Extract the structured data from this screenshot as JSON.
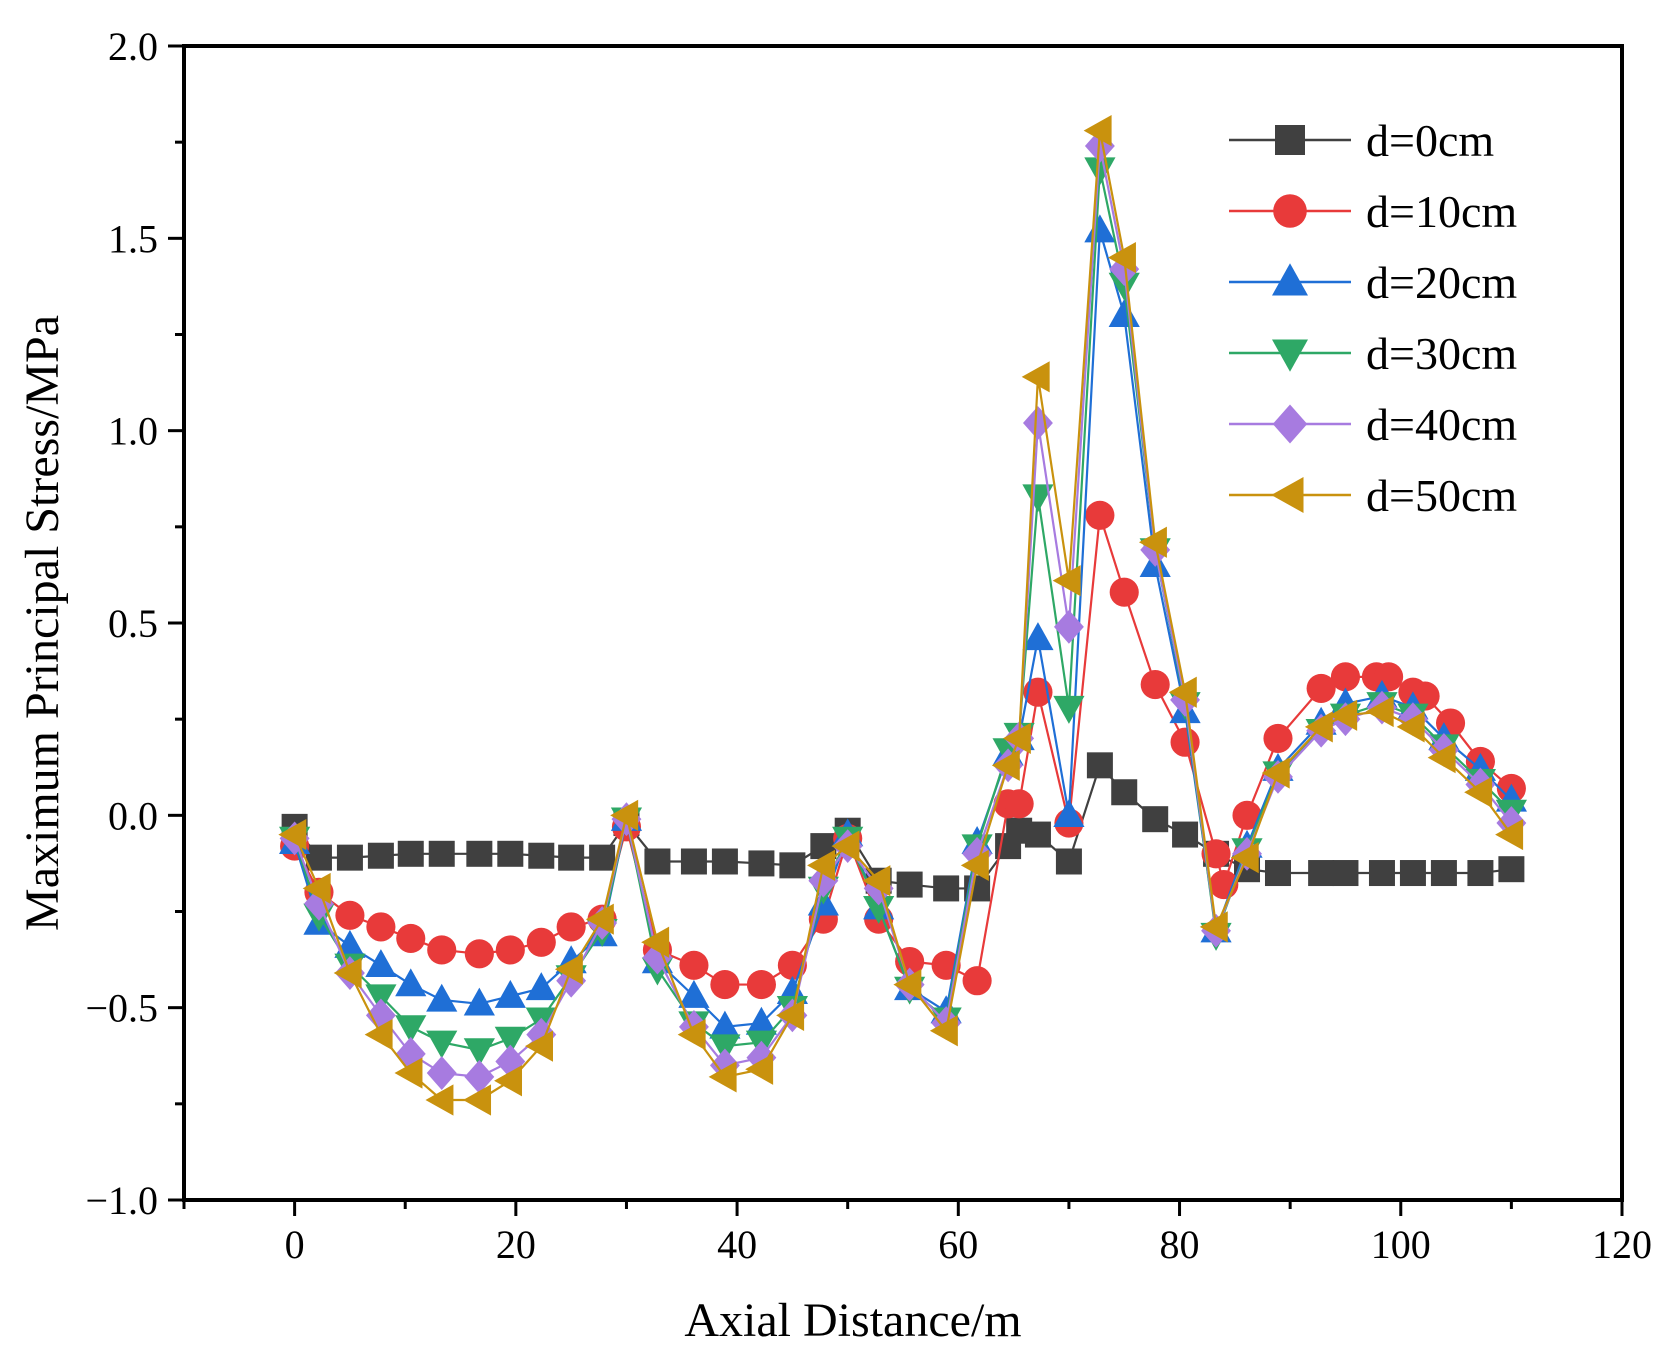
{
  "chart_data": {
    "type": "line",
    "title": "",
    "xlabel": "Axial Distance/m",
    "ylabel": "Maximum Principal Stress/MPa",
    "xlim": [
      -10,
      120
    ],
    "ylim": [
      -1.0,
      2.0
    ],
    "xticks": [
      0,
      20,
      40,
      60,
      80,
      100,
      120
    ],
    "xtick_labels": [
      "0",
      "20",
      "40",
      "60",
      "80",
      "100",
      "120"
    ],
    "yticks": [
      -1.0,
      -0.5,
      0.0,
      0.5,
      1.0,
      1.5,
      2.0
    ],
    "ytick_labels": [
      "−1.0",
      "−0.5",
      "0.0",
      "0.5",
      "1.0",
      "1.5",
      "2.0"
    ],
    "grid": false,
    "legend_position": "top-right",
    "series": [
      {
        "name": "d=0cm",
        "color": "#404040",
        "marker": "square",
        "x": [
          0,
          2.2,
          5,
          7.8,
          10.5,
          13.3,
          16.7,
          19.5,
          22.3,
          25,
          27.8,
          30,
          32.8,
          36.1,
          38.9,
          42.2,
          45,
          47.8,
          50,
          52.8,
          55.6,
          58.9,
          61.7,
          64.5,
          65.5,
          67.2,
          70,
          72.8,
          75,
          77.8,
          80.5,
          83.3,
          86.1,
          88.9,
          92.8,
          95,
          98.3,
          101.1,
          103.9,
          107.2,
          110
        ],
        "values": [
          -0.03,
          -0.11,
          -0.11,
          -0.105,
          -0.1,
          -0.1,
          -0.1,
          -0.1,
          -0.105,
          -0.11,
          -0.11,
          -0.02,
          -0.12,
          -0.12,
          -0.12,
          -0.125,
          -0.13,
          -0.08,
          -0.04,
          -0.17,
          -0.18,
          -0.19,
          -0.19,
          -0.08,
          -0.04,
          -0.05,
          -0.12,
          0.13,
          0.06,
          -0.01,
          -0.05,
          -0.1,
          -0.14,
          -0.15,
          -0.15,
          -0.15,
          -0.15,
          -0.15,
          -0.15,
          -0.15,
          -0.14
        ]
      },
      {
        "name": "d=10cm",
        "color": "#e83a3a",
        "marker": "circle",
        "x": [
          0,
          2.2,
          5,
          7.8,
          10.5,
          13.3,
          16.7,
          19.5,
          22.3,
          25,
          27.8,
          30,
          32.8,
          36.1,
          38.9,
          42.2,
          45,
          47.8,
          50,
          52.8,
          55.6,
          58.9,
          61.7,
          64.5,
          65.5,
          67.2,
          70,
          72.8,
          75,
          77.8,
          80.5,
          83.3,
          84,
          86.1,
          88.9,
          92.8,
          95,
          97.8,
          98.9,
          101.1,
          102.2,
          104.5,
          107.2,
          110
        ],
        "values": [
          -0.08,
          -0.2,
          -0.26,
          -0.29,
          -0.32,
          -0.35,
          -0.36,
          -0.35,
          -0.33,
          -0.29,
          -0.27,
          -0.03,
          -0.35,
          -0.39,
          -0.44,
          -0.44,
          -0.39,
          -0.27,
          -0.06,
          -0.27,
          -0.38,
          -0.39,
          -0.43,
          0.03,
          0.03,
          0.32,
          -0.02,
          0.78,
          0.58,
          0.34,
          0.19,
          -0.1,
          -0.18,
          0.0,
          0.2,
          0.33,
          0.36,
          0.36,
          0.36,
          0.32,
          0.31,
          0.24,
          0.14,
          0.07
        ]
      },
      {
        "name": "d=20cm",
        "color": "#1f6fd6",
        "marker": "triangle-up",
        "x": [
          0,
          2.2,
          5,
          7.8,
          10.5,
          13.3,
          16.7,
          19.5,
          22.3,
          25,
          27.8,
          30,
          32.8,
          36.1,
          38.9,
          42.2,
          45,
          47.8,
          50,
          52.8,
          55.6,
          58.9,
          61.7,
          64.5,
          65.5,
          67.2,
          70,
          72.8,
          75,
          77.8,
          80.5,
          83.3,
          86.1,
          88.9,
          92.8,
          95,
          98.3,
          101.1,
          103.9,
          107.2,
          110
        ],
        "values": [
          -0.07,
          -0.28,
          -0.34,
          -0.39,
          -0.44,
          -0.48,
          -0.49,
          -0.47,
          -0.45,
          -0.38,
          -0.31,
          -0.01,
          -0.38,
          -0.47,
          -0.55,
          -0.54,
          -0.46,
          -0.23,
          -0.05,
          -0.24,
          -0.45,
          -0.51,
          -0.07,
          0.16,
          0.2,
          0.46,
          0.0,
          1.52,
          1.3,
          0.65,
          0.27,
          -0.3,
          -0.08,
          0.12,
          0.24,
          0.29,
          0.31,
          0.28,
          0.2,
          0.12,
          0.04
        ]
      },
      {
        "name": "d=30cm",
        "color": "#2ea866",
        "marker": "triangle-down",
        "x": [
          0,
          2.2,
          5,
          7.8,
          10.5,
          13.3,
          16.7,
          19.5,
          22.3,
          25,
          27.8,
          30,
          32.8,
          36.1,
          38.9,
          42.2,
          45,
          47.8,
          50,
          52.8,
          55.6,
          58.9,
          61.7,
          64.5,
          65.5,
          67.2,
          70,
          72.8,
          75,
          77.8,
          80.5,
          83.3,
          86.1,
          88.9,
          92.8,
          95,
          98.3,
          101.1,
          103.9,
          107.2,
          110
        ],
        "values": [
          -0.06,
          -0.26,
          -0.39,
          -0.47,
          -0.55,
          -0.59,
          -0.61,
          -0.58,
          -0.53,
          -0.42,
          -0.3,
          -0.01,
          -0.4,
          -0.54,
          -0.6,
          -0.59,
          -0.5,
          -0.19,
          -0.06,
          -0.24,
          -0.45,
          -0.53,
          -0.08,
          0.17,
          0.21,
          0.83,
          0.28,
          1.68,
          1.38,
          0.69,
          0.29,
          -0.31,
          -0.09,
          0.11,
          0.22,
          0.26,
          0.29,
          0.26,
          0.18,
          0.09,
          0.01
        ]
      },
      {
        "name": "d=40cm",
        "color": "#a77be0",
        "marker": "diamond",
        "x": [
          0,
          2.2,
          5,
          7.8,
          10.5,
          13.3,
          16.7,
          19.5,
          22.3,
          25,
          27.8,
          30,
          32.8,
          36.1,
          38.9,
          42.2,
          45,
          47.8,
          50,
          52.8,
          55.6,
          58.9,
          61.7,
          64.5,
          65.5,
          67.2,
          70,
          72.8,
          75,
          77.8,
          80.5,
          83.3,
          86.1,
          88.9,
          92.8,
          95,
          98.3,
          101.1,
          103.9,
          107.2,
          110
        ],
        "values": [
          -0.06,
          -0.23,
          -0.41,
          -0.52,
          -0.62,
          -0.67,
          -0.68,
          -0.64,
          -0.57,
          -0.43,
          -0.28,
          -0.01,
          -0.37,
          -0.55,
          -0.65,
          -0.63,
          -0.52,
          -0.17,
          -0.08,
          -0.19,
          -0.44,
          -0.54,
          -0.1,
          0.13,
          0.2,
          1.02,
          0.49,
          1.74,
          1.42,
          0.69,
          0.3,
          -0.3,
          -0.1,
          0.1,
          0.22,
          0.25,
          0.28,
          0.25,
          0.17,
          0.08,
          -0.02
        ]
      },
      {
        "name": "d=50cm",
        "color": "#c9920e",
        "marker": "triangle-left",
        "x": [
          0,
          2.2,
          5,
          7.8,
          10.5,
          13.3,
          16.7,
          19.5,
          22.3,
          25,
          27.8,
          30,
          32.8,
          36.1,
          38.9,
          42.2,
          45,
          47.8,
          50,
          52.8,
          55.6,
          58.9,
          61.7,
          64.5,
          65.5,
          67.2,
          70,
          72.8,
          75,
          77.8,
          80.5,
          83.3,
          86.1,
          88.9,
          92.8,
          95,
          98.3,
          101.1,
          103.9,
          107.2,
          110
        ],
        "values": [
          -0.05,
          -0.19,
          -0.41,
          -0.57,
          -0.67,
          -0.74,
          -0.74,
          -0.69,
          -0.6,
          -0.4,
          -0.27,
          0.0,
          -0.33,
          -0.57,
          -0.68,
          -0.66,
          -0.52,
          -0.13,
          -0.08,
          -0.17,
          -0.44,
          -0.56,
          -0.13,
          0.13,
          0.2,
          1.14,
          0.61,
          1.78,
          1.45,
          0.71,
          0.32,
          -0.29,
          -0.11,
          0.11,
          0.23,
          0.26,
          0.27,
          0.23,
          0.15,
          0.06,
          -0.05
        ]
      }
    ]
  }
}
